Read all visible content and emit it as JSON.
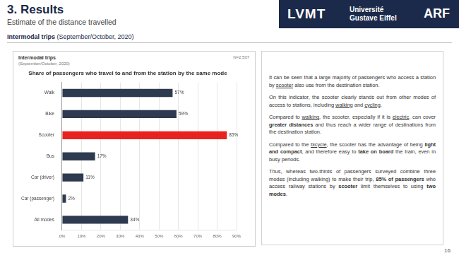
{
  "header": {
    "title": "3. Results",
    "subtitle": "Estimate of the distance travelled",
    "logos": [
      "LVMT",
      "Université",
      "Gustave Eiffel",
      "ARF"
    ]
  },
  "section": [
    {
      "text": "Intermodal trips",
      "style": "bold"
    },
    " (September/October, 2020)"
  ],
  "panel": {
    "title": "Intermodal trips",
    "subtitle": "(September/October, 2020)",
    "note": "N=2,537"
  },
  "chart_data": {
    "type": "bar",
    "orientation": "horizontal",
    "title": "Share of passengers who travel to and from the station by the same mode",
    "categories": [
      "Walk",
      "Bike",
      "Scooter",
      "Bus",
      "Car (driver)",
      "Car (passenger)",
      "All modes"
    ],
    "values": [
      57,
      59,
      85,
      17,
      11,
      2,
      34
    ],
    "value_labels": [
      "57%",
      "59%",
      "85%",
      "17%",
      "11%",
      "2%",
      "34%"
    ],
    "colors": [
      "#2d3a4f",
      "#2d3a4f",
      "#e8231f",
      "#2d3a4f",
      "#2d3a4f",
      "#2d3a4f",
      "#2d3a4f"
    ],
    "xlim": [
      0,
      90
    ],
    "xticks": [
      {
        "value": 0,
        "label": "0%"
      },
      {
        "value": 10,
        "label": "10%"
      },
      {
        "value": 20,
        "label": "20%"
      },
      {
        "value": 30,
        "label": "30%"
      },
      {
        "value": 40,
        "label": "40%"
      },
      {
        "value": 50,
        "label": "50%"
      },
      {
        "value": 60,
        "label": "60%"
      },
      {
        "value": 70,
        "label": "70%"
      },
      {
        "value": 80,
        "label": "80%"
      },
      {
        "value": 90,
        "label": "90%"
      }
    ],
    "grid": true,
    "data_labels": true
  },
  "text": [
    [
      "It can be seen that a large majority of passengers who access a station by ",
      {
        "text": "scooter",
        "style": "underline"
      },
      " also use from the destination station."
    ],
    [
      "On this indicator, the scooter clearly stands out from other modes of access to stations, including ",
      {
        "text": "walking",
        "style": "underline"
      },
      " and ",
      {
        "text": "cycling",
        "style": "underline"
      },
      "."
    ],
    [
      "Compared to ",
      {
        "text": "walking",
        "style": "underline"
      },
      ", the scooter, especially if it is ",
      {
        "text": "electric",
        "style": "underline"
      },
      ", can cover ",
      {
        "text": "greater distances",
        "style": "bold"
      },
      " and thus reach a wider range of destinations from the destination station."
    ],
    [
      "Compared to the ",
      {
        "text": "bicycle",
        "style": "underline"
      },
      ", the scooter has the advantage of being ",
      {
        "text": "light and compact",
        "style": "bold"
      },
      ", and therefore easy to ",
      {
        "text": "take on board",
        "style": "bold"
      },
      " the train, even in busy periods."
    ],
    [
      "Thus, whereas two-thirds of passengers surveyed combine three modes (including walking) to make their trip, ",
      {
        "text": "85% of passengers",
        "style": "bold"
      },
      " who access railway stations by ",
      {
        "text": "scooter",
        "style": "bold"
      },
      " limit themselves to using ",
      {
        "text": "two modes",
        "style": "bold"
      },
      "."
    ]
  ],
  "page_number": 16
}
